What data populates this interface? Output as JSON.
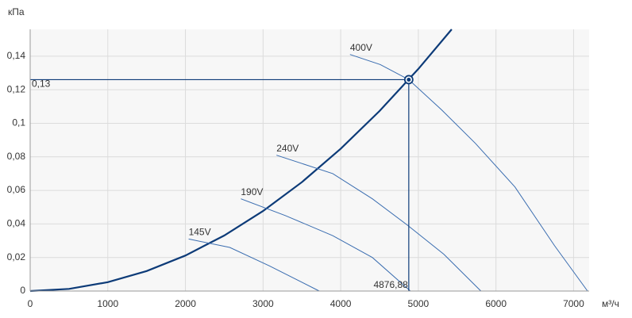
{
  "chart_data": {
    "type": "line",
    "x_label": "м³/ч",
    "y_label": "кПа",
    "xlim": [
      0,
      7200
    ],
    "ylim": [
      0,
      0.156
    ],
    "xticks": [
      0,
      1000,
      2000,
      3000,
      4000,
      5000,
      6000,
      7000
    ],
    "yticks": [
      0,
      {
        "value": 0.02,
        "label": "0,02"
      },
      {
        "value": 0.04,
        "label": "0,04"
      },
      {
        "value": 0.06,
        "label": "0,06"
      },
      {
        "value": 0.08,
        "label": "0,08"
      },
      {
        "value": 0.1,
        "label": "0,1"
      },
      {
        "value": 0.12,
        "label": "0,12"
      },
      {
        "value": 0.14,
        "label": "0,14"
      }
    ],
    "grid": true,
    "series": [
      {
        "color": "#0d3b78",
        "x": [
          0,
          500,
          1000,
          1500,
          2000,
          2500,
          3000,
          3500,
          4000,
          4500,
          5000,
          5430
        ],
        "values": [
          0,
          0.0013,
          0.0053,
          0.0119,
          0.0212,
          0.0331,
          0.0477,
          0.0649,
          0.0848,
          0.1073,
          0.1324,
          0.156
        ]
      },
      {
        "name": "400V",
        "color": "#3a6db0",
        "x": [
          4120,
          4510,
          4877,
          5300,
          5735,
          6245,
          6755,
          7180
        ],
        "values": [
          0.141,
          0.135,
          0.126,
          0.108,
          0.088,
          0.062,
          0.027,
          0
        ]
      },
      {
        "name": "240V",
        "color": "#3a6db0",
        "x": [
          3173,
          3898,
          4408,
          4867,
          5327,
          5806
        ],
        "values": [
          0.081,
          0.07,
          0.055,
          0.039,
          0.022,
          0
        ]
      },
      {
        "name": "190V",
        "color": "#3a6db0",
        "x": [
          2714,
          3286,
          3898,
          4408,
          4898
        ],
        "values": [
          0.055,
          0.045,
          0.033,
          0.02,
          0
        ]
      },
      {
        "name": "145V",
        "color": "#3a6db0",
        "x": [
          2041,
          2571,
          3082,
          3724
        ],
        "values": [
          0.031,
          0.026,
          0.015,
          0
        ]
      }
    ],
    "operating_point": {
      "x": 4876.88,
      "y": 0.126,
      "x_label": "4876,88",
      "y_label": "0,13",
      "color": "#0d3b78"
    }
  }
}
